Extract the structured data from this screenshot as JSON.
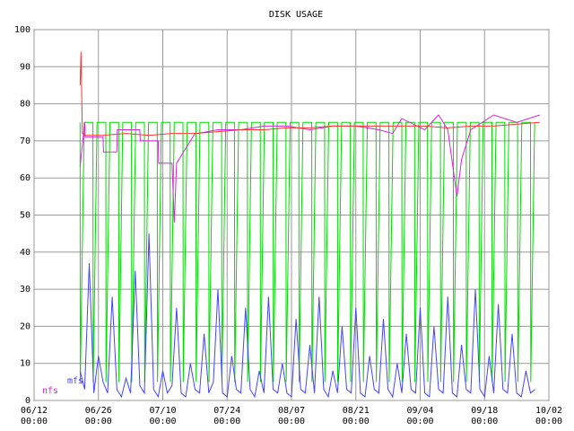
{
  "chart_data": {
    "type": "line",
    "title": "DISK USAGE",
    "xlim": [
      0,
      112
    ],
    "ylim": [
      0,
      100
    ],
    "yticks": [
      0,
      10,
      20,
      30,
      40,
      50,
      60,
      70,
      80,
      90,
      100
    ],
    "xticks": [
      {
        "value": 0,
        "label": "06/12 00:00"
      },
      {
        "value": 14,
        "label": "06/26 00:00"
      },
      {
        "value": 28,
        "label": "07/10 00:00"
      },
      {
        "value": 42,
        "label": "07/24 00:00"
      },
      {
        "value": 56,
        "label": "08/07 00:00"
      },
      {
        "value": 70,
        "label": "08/21 00:00"
      },
      {
        "value": 84,
        "label": "09/04 00:00"
      },
      {
        "value": 98,
        "label": "09/18 00:00"
      },
      {
        "value": 112,
        "label": "10/02 00:00"
      }
    ],
    "grid": true,
    "series": [
      {
        "color": "#00dd00",
        "x": [
          10,
          10.05,
          10.9,
          12.8,
          12.85,
          13.7,
          15.6,
          15.65,
          16.5,
          18.4,
          18.45,
          19.3,
          21.2,
          21.25,
          22.1,
          24,
          24.05,
          24.9,
          26.8,
          26.85,
          27.7,
          29.6,
          29.65,
          30.5,
          32.4,
          32.45,
          33.3,
          35.2,
          35.25,
          36.1,
          38,
          38.05,
          38.9,
          40.8,
          40.85,
          41.7,
          43.6,
          43.65,
          44.5,
          46.4,
          46.45,
          47.3,
          49.2,
          49.25,
          50.1,
          52,
          52.05,
          52.9,
          54.8,
          54.85,
          55.7,
          57.6,
          57.65,
          58.5,
          60.4,
          60.45,
          61.3,
          63.2,
          63.25,
          64.1,
          66,
          66.05,
          66.9,
          68.8,
          68.85,
          69.7,
          71.6,
          71.65,
          72.5,
          74.4,
          74.45,
          75.3,
          77.2,
          77.25,
          78.1,
          80,
          80.05,
          80.9,
          82.8,
          82.85,
          83.7,
          85.6,
          85.65,
          86.5,
          88.4,
          88.45,
          89.3,
          91.2,
          91.25,
          92.1,
          94,
          94.05,
          94.9,
          96.8,
          96.85,
          97.7,
          99.6,
          99.65,
          100.5,
          102.4,
          102.45,
          103.3,
          105.2,
          105.25,
          106.1,
          108,
          108.05,
          108.9
        ],
        "values": [
          75,
          5,
          75,
          75,
          5,
          75,
          75,
          5,
          75,
          75,
          5,
          75,
          75,
          5,
          75,
          75,
          5,
          75,
          75,
          5,
          75,
          75,
          5,
          75,
          75,
          5,
          75,
          75,
          5,
          75,
          75,
          5,
          75,
          75,
          5,
          75,
          75,
          5,
          75,
          75,
          5,
          75,
          75,
          5,
          75,
          75,
          5,
          75,
          75,
          5,
          75,
          75,
          5,
          75,
          75,
          5,
          75,
          75,
          5,
          75,
          75,
          5,
          75,
          75,
          5,
          75,
          75,
          5,
          75,
          75,
          5,
          75,
          75,
          5,
          75,
          75,
          5,
          75,
          75,
          5,
          75,
          75,
          5,
          75,
          75,
          5,
          75,
          75,
          5,
          75,
          75,
          5,
          75,
          75,
          5,
          75,
          75,
          5,
          75,
          75,
          5,
          75,
          75,
          5,
          75,
          75,
          5,
          75
        ]
      },
      {
        "name": "mfs",
        "color": "#4444ff",
        "x": [
          10,
          11,
          12,
          13,
          14,
          15,
          16,
          17,
          18,
          19,
          20,
          21,
          22,
          23,
          24,
          25,
          26,
          27,
          28,
          29,
          30,
          31,
          32,
          33,
          34,
          35,
          36,
          37,
          38,
          39,
          40,
          41,
          42,
          43,
          44,
          45,
          46,
          47,
          48,
          49,
          50,
          51,
          52,
          53,
          54,
          55,
          56,
          57,
          58,
          59,
          60,
          61,
          62,
          63,
          64,
          65,
          66,
          67,
          68,
          69,
          70,
          71,
          72,
          73,
          74,
          75,
          76,
          77,
          78,
          79,
          80,
          81,
          82,
          83,
          84,
          85,
          86,
          87,
          88,
          89,
          90,
          91,
          92,
          93,
          94,
          95,
          96,
          97,
          98,
          99,
          100,
          101,
          102,
          103,
          104,
          105,
          106,
          107,
          108,
          109
        ],
        "values": [
          8,
          3,
          37,
          2,
          12,
          5,
          2,
          28,
          3,
          1,
          6,
          2,
          35,
          4,
          2,
          45,
          3,
          1,
          8,
          2,
          4,
          25,
          2,
          1,
          10,
          3,
          2,
          18,
          2,
          5,
          30,
          2,
          1,
          12,
          3,
          2,
          25,
          3,
          1,
          8,
          2,
          28,
          3,
          2,
          10,
          2,
          1,
          22,
          3,
          2,
          15,
          2,
          28,
          3,
          1,
          8,
          2,
          20,
          3,
          2,
          25,
          2,
          1,
          12,
          3,
          2,
          22,
          3,
          1,
          10,
          2,
          18,
          3,
          2,
          25,
          2,
          1,
          20,
          3,
          2,
          28,
          2,
          1,
          15,
          3,
          2,
          30,
          3,
          1,
          12,
          2,
          26,
          3,
          2,
          18,
          2,
          1,
          8,
          2,
          3
        ]
      },
      {
        "name": "nfs",
        "color": "#dd22dd",
        "x": [
          10,
          11,
          11.1,
          15,
          15.1,
          18,
          18.1,
          23,
          23.1,
          27,
          27.1,
          30,
          30.5,
          31,
          35,
          35.5,
          40,
          45,
          50,
          55,
          60,
          65,
          70,
          75,
          78,
          80,
          85,
          88,
          90,
          92,
          93,
          95,
          100,
          105,
          110
        ],
        "values": [
          63,
          75,
          71,
          71,
          67,
          67,
          73,
          73,
          70,
          70,
          64,
          64,
          48,
          64,
          72,
          72,
          73,
          73,
          74,
          74,
          73,
          74,
          74,
          73,
          72,
          76,
          73,
          77,
          73,
          55,
          65,
          73,
          77,
          75,
          77
        ]
      },
      {
        "color": "#ff3333",
        "x": [
          10,
          10.2,
          10.5,
          11,
          15,
          20,
          25,
          30,
          35,
          40,
          45,
          50,
          55,
          60,
          65,
          70,
          75,
          80,
          85,
          90,
          95,
          100,
          105,
          110
        ],
        "values": [
          85,
          94,
          72,
          71.5,
          71.5,
          72,
          71.5,
          72,
          72,
          72.5,
          73,
          73,
          73.5,
          73.5,
          74,
          74,
          74,
          74,
          74,
          73.5,
          74,
          74,
          74.5,
          75
        ]
      }
    ]
  }
}
